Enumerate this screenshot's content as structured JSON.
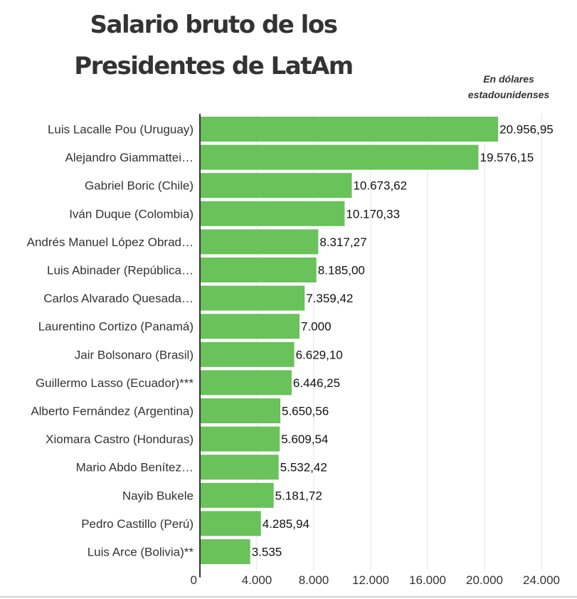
{
  "chart_data": {
    "type": "bar",
    "orientation": "horizontal",
    "title_lines": [
      "Salario bruto de los",
      "Presidentes de LatAm"
    ],
    "unit_note_lines": [
      "En dólares",
      "estadounidenses"
    ],
    "categories": [
      "Luis Lacalle Pou (Uruguay)",
      "Alejandro Giammattei…",
      "Gabriel Boric (Chile)",
      "Iván Duque (Colombia)",
      "Andrés Manuel López Obrad…",
      "Luis Abinader (República…",
      "Carlos Alvarado Quesada…",
      "Laurentino Cortizo (Panamá)",
      "Jair Bolsonaro (Brasil)",
      "Guillermo Lasso (Ecuador)***",
      "Alberto Fernández (Argentina)",
      "Xiomara Castro (Honduras)",
      "Mario Abdo Benítez…",
      "Nayib Bukele",
      "Pedro Castillo (Perú)",
      "Luis Arce (Bolivia)**"
    ],
    "values": [
      20956.95,
      19576.15,
      10673.62,
      10170.33,
      8317.27,
      8185.0,
      7359.42,
      7000,
      6629.1,
      6446.25,
      5650.56,
      5609.54,
      5532.42,
      5181.72,
      4285.94,
      3535
    ],
    "value_labels": [
      "20.956,95",
      "19.576,15",
      "10.673,62",
      "10.170,33",
      "8.317,27",
      "8.185,00",
      "7.359,42",
      "7.000",
      "6.629,10",
      "6.446,25",
      "5.650,56",
      "5.609,54",
      "5.532,42",
      "5.181,72",
      "4.285,94",
      "3.535"
    ],
    "xlim": [
      0,
      24000
    ],
    "x_ticks": [
      0,
      4000,
      8000,
      12000,
      16000,
      20000,
      24000
    ],
    "x_tick_labels": [
      "0",
      "4.000",
      "8.000",
      "12.000",
      "16.000",
      "20.000",
      "24.000"
    ],
    "grid": true,
    "bar_color": "#69c25a"
  }
}
